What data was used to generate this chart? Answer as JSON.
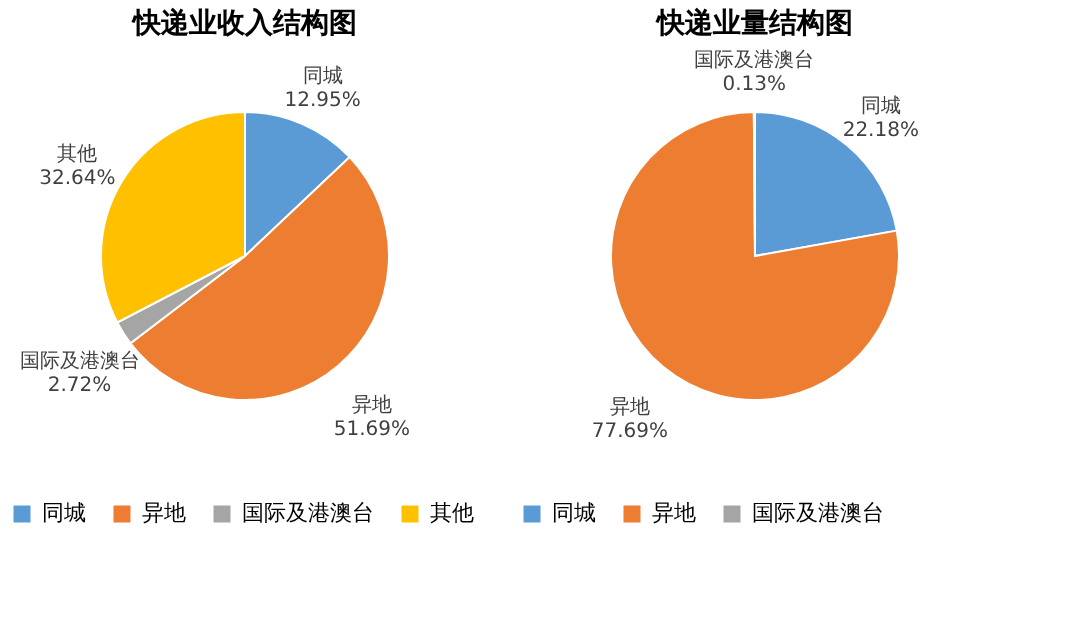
{
  "chart_data": [
    {
      "type": "pie",
      "title": "快递业收入结构图",
      "categories": [
        "同城",
        "异地",
        "国际及港澳台",
        "其他"
      ],
      "values": [
        12.95,
        51.69,
        2.72,
        32.64
      ],
      "colors": [
        "#5b9bd5",
        "#ed7d31",
        "#a5a5a5",
        "#ffc000"
      ],
      "value_labels": [
        "12.95%",
        "51.69%",
        "2.72%",
        "32.64%"
      ],
      "legend": "bottom"
    },
    {
      "type": "pie",
      "title": "快递业量结构图",
      "categories": [
        "同城",
        "异地",
        "国际及港澳台"
      ],
      "values": [
        22.18,
        77.69,
        0.13
      ],
      "colors": [
        "#5b9bd5",
        "#ed7d31",
        "#a5a5a5"
      ],
      "value_labels": [
        "22.18%",
        "77.69%",
        "0.13%"
      ],
      "legend": "bottom"
    }
  ]
}
